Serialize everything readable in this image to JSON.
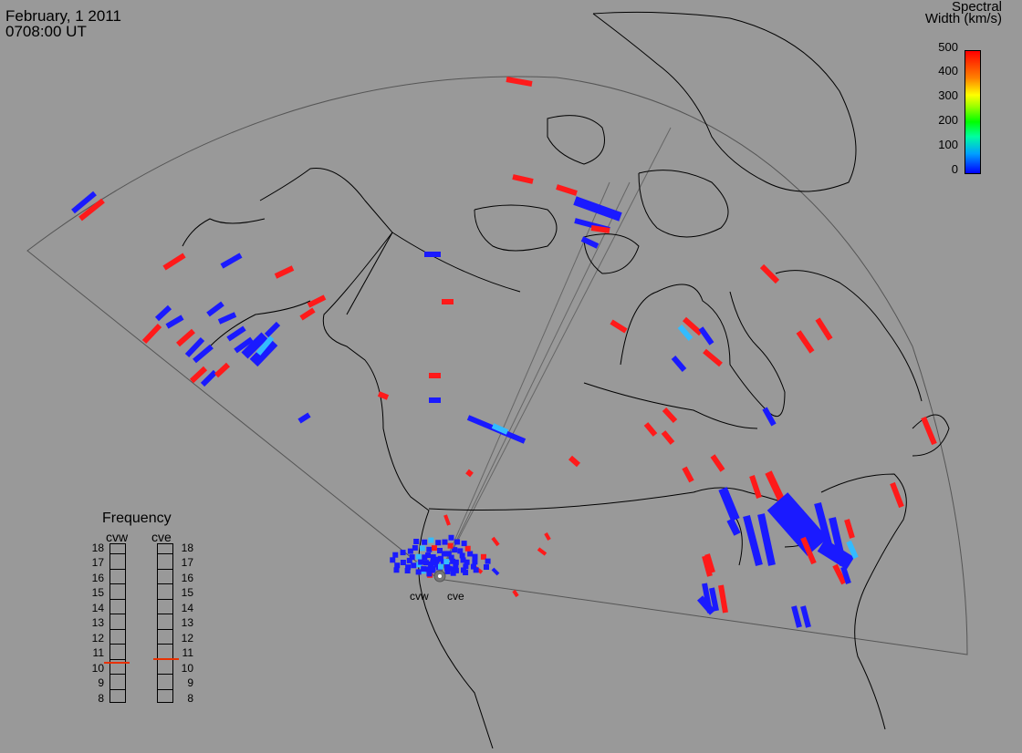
{
  "header": {
    "date": "February, 1 2011",
    "time": "0708:00 UT"
  },
  "colorbar": {
    "title_line1": "Spectral",
    "title_line2": "Width (km/s)",
    "ticks": [
      "500",
      "400",
      "300",
      "200",
      "100",
      "0"
    ],
    "colors": [
      "#0000ff",
      "#00a0ff",
      "#00ffa0",
      "#00ff00",
      "#a0ff00",
      "#ffff00",
      "#ff8000",
      "#ff0000"
    ]
  },
  "frequency_panel": {
    "title": "Frequency",
    "radar_left": "cvw",
    "radar_right": "cve",
    "labels": [
      "18",
      "17",
      "16",
      "15",
      "14",
      "13",
      "12",
      "11",
      "10",
      "9",
      "8"
    ],
    "cvw_selected": 10.5,
    "cve_selected": 10.7
  },
  "sites": {
    "left": "cvw",
    "right": "cve"
  },
  "map": {
    "background": "#999999",
    "fov_color": "#555555",
    "coast_color": "#000000",
    "low_width_color": "#1a1aff",
    "mid_width_color": "#33bbff",
    "high_width_color": "#ff1a1a"
  }
}
